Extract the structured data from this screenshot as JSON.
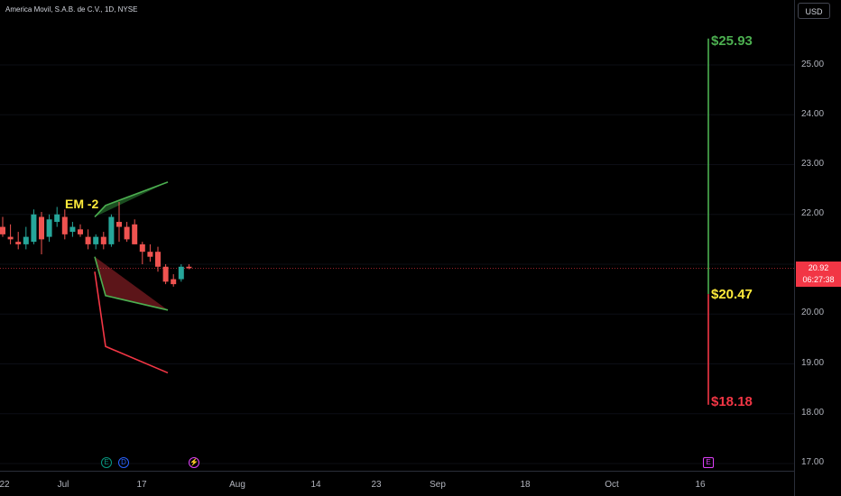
{
  "header": {
    "title": "America Movil, S.A.B. de C.V., 1D, NYSE"
  },
  "currency_button": {
    "label": "USD"
  },
  "last_price": {
    "value": "20.92",
    "countdown": "06:27:38"
  },
  "annotations": {
    "em_label": "EM -2",
    "upper_level": "$25.93",
    "mid_level": "$20.47",
    "lower_level": "$18.18"
  },
  "y_axis": {
    "ticks": [
      "25.00",
      "24.00",
      "23.00",
      "22.00",
      "21.00",
      "20.00",
      "19.00",
      "18.00",
      "17.00"
    ]
  },
  "x_axis": {
    "ticks": [
      "22",
      "Jul",
      "17",
      "Aug",
      "14",
      "23",
      "Sep",
      "18",
      "Oct",
      "16"
    ]
  },
  "events": [
    {
      "type": "earnings",
      "glyph": "E"
    },
    {
      "type": "dividend",
      "glyph": "D"
    },
    {
      "type": "split",
      "glyph": "⚡"
    },
    {
      "type": "earnings-upcoming",
      "glyph": "E"
    }
  ],
  "colors": {
    "up": "#26a69a",
    "down": "#ef5350",
    "upper_zone": "#1b4d20",
    "lower_zone": "#5c1519",
    "upper_line": "#4caf50",
    "lower_line": "#f23645"
  },
  "chart_data": {
    "type": "candlestick",
    "title": "America Movil, S.A.B. de C.V., 1D, NYSE",
    "ylim": [
      16.8,
      26.3
    ],
    "candles": [
      {
        "o": 21.75,
        "h": 21.95,
        "l": 21.55,
        "c": 21.6
      },
      {
        "o": 21.55,
        "h": 21.8,
        "l": 21.4,
        "c": 21.5
      },
      {
        "o": 21.45,
        "h": 21.65,
        "l": 21.3,
        "c": 21.4
      },
      {
        "o": 21.4,
        "h": 21.75,
        "l": 21.3,
        "c": 21.55
      },
      {
        "o": 21.45,
        "h": 22.1,
        "l": 21.4,
        "c": 22.0
      },
      {
        "o": 21.95,
        "h": 22.05,
        "l": 21.2,
        "c": 21.5
      },
      {
        "o": 21.55,
        "h": 22.0,
        "l": 21.45,
        "c": 21.9
      },
      {
        "o": 21.85,
        "h": 22.15,
        "l": 21.75,
        "c": 22.0
      },
      {
        "o": 21.95,
        "h": 22.1,
        "l": 21.5,
        "c": 21.6
      },
      {
        "o": 21.65,
        "h": 21.85,
        "l": 21.55,
        "c": 21.75
      },
      {
        "o": 21.7,
        "h": 21.8,
        "l": 21.55,
        "c": 21.6
      },
      {
        "o": 21.55,
        "h": 21.7,
        "l": 21.3,
        "c": 21.4
      },
      {
        "o": 21.4,
        "h": 21.6,
        "l": 21.3,
        "c": 21.55
      },
      {
        "o": 21.55,
        "h": 21.65,
        "l": 21.3,
        "c": 21.4
      },
      {
        "o": 21.4,
        "h": 22.0,
        "l": 21.35,
        "c": 21.95
      },
      {
        "o": 21.85,
        "h": 22.25,
        "l": 21.45,
        "c": 21.75
      },
      {
        "o": 21.75,
        "h": 21.85,
        "l": 21.45,
        "c": 21.5
      },
      {
        "o": 21.8,
        "h": 21.9,
        "l": 21.4,
        "c": 21.4
      },
      {
        "o": 21.4,
        "h": 21.45,
        "l": 21.0,
        "c": 21.25
      },
      {
        "o": 21.25,
        "h": 21.4,
        "l": 21.05,
        "c": 21.15
      },
      {
        "o": 21.25,
        "h": 21.35,
        "l": 20.85,
        "c": 20.95
      },
      {
        "o": 20.95,
        "h": 21.0,
        "l": 20.6,
        "c": 20.65
      },
      {
        "o": 20.7,
        "h": 20.8,
        "l": 20.55,
        "c": 20.6
      },
      {
        "o": 20.7,
        "h": 21.0,
        "l": 20.65,
        "c": 20.95
      },
      {
        "o": 20.95,
        "h": 21.0,
        "l": 20.9,
        "c": 20.92
      }
    ],
    "last_price": 20.92,
    "expected_move": {
      "upper_line": [
        [
          -1,
          21.95
        ],
        [
          0,
          22.18
        ],
        [
          1,
          22.65
        ],
        [
          4,
          25.53
        ]
      ],
      "mid_line": [
        [
          -1,
          21.15
        ],
        [
          0,
          20.37
        ],
        [
          1,
          20.08
        ],
        [
          4,
          20.4
        ]
      ],
      "lower_line": [
        [
          -1,
          20.85
        ],
        [
          0,
          19.35
        ],
        [
          1,
          18.82
        ],
        [
          4,
          18.18
        ]
      ],
      "levels": [
        25.93,
        20.47,
        18.18
      ]
    }
  }
}
